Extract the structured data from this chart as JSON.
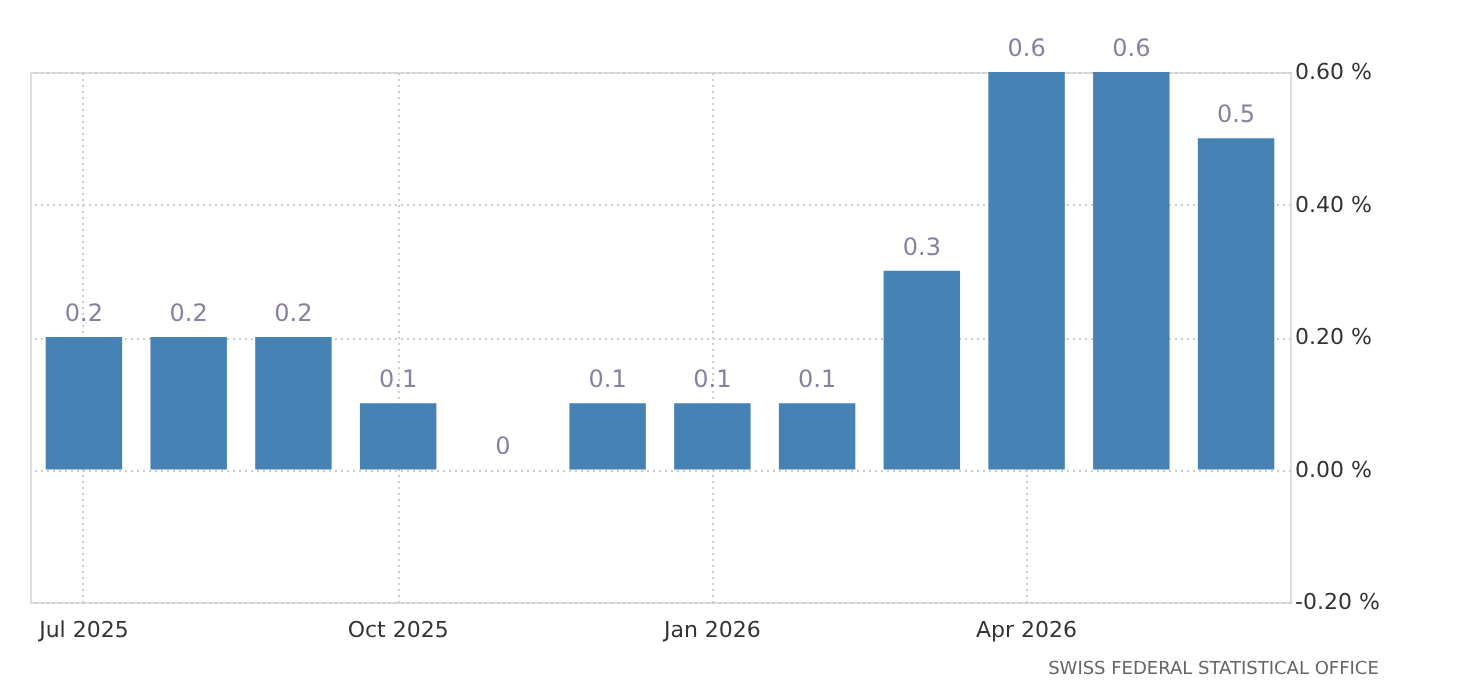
{
  "chart_data": {
    "type": "bar",
    "categories": [
      "Jul 2025",
      null,
      null,
      "Oct 2025",
      null,
      null,
      "Jan 2026",
      null,
      null,
      "Apr 2026",
      null,
      null
    ],
    "values": [
      0.2,
      0.2,
      0.2,
      0.1,
      0,
      0.1,
      0.1,
      0.1,
      0.3,
      0.6,
      0.6,
      0.5
    ],
    "value_labels": [
      "0.2",
      "0.2",
      "0.2",
      "0.1",
      "0",
      "0.1",
      "0.1",
      "0.1",
      "0.3",
      "0.6",
      "0.6",
      "0.5"
    ],
    "color": "#4682b4",
    "ylim": [
      -0.2,
      0.6
    ],
    "yticks": [
      {
        "value": -0.2,
        "label": "-0.20 %"
      },
      {
        "value": 0,
        "label": "0.00 %"
      },
      {
        "value": 0.2,
        "label": "0.20 %"
      },
      {
        "value": 0.4,
        "label": "0.40 %"
      },
      {
        "value": 0.6,
        "label": "0.60 %"
      }
    ],
    "grid": true,
    "annotations": [
      "SWISS FEDERAL STATISTICAL OFFICE"
    ]
  }
}
